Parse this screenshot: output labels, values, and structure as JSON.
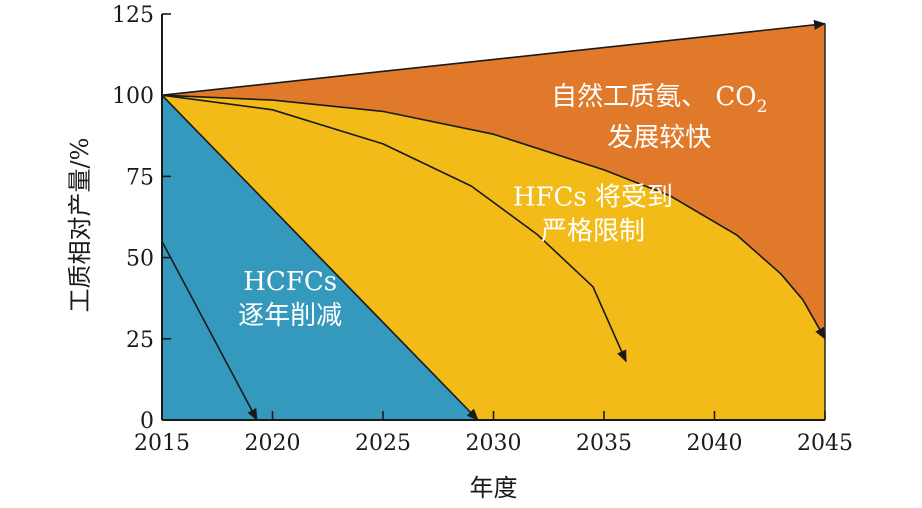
{
  "chart_data": {
    "type": "area",
    "xlabel": "年度",
    "ylabel": "工质相对产量/%",
    "xlim": [
      2015,
      2045
    ],
    "ylim": [
      0,
      125
    ],
    "x_ticks": [
      2015,
      2020,
      2025,
      2030,
      2035,
      2040,
      2045
    ],
    "y_ticks": [
      0,
      25,
      50,
      75,
      100,
      125
    ],
    "grid": false,
    "colors": {
      "natural": "#e07a2a",
      "hfc": "#f2bb18",
      "hcfc": "#3598bd"
    },
    "regions": [
      {
        "key": "natural",
        "boundary": [
          [
            2015,
            100
          ],
          [
            2045,
            122
          ]
        ]
      },
      {
        "key": "hfc",
        "boundary": [
          [
            2015,
            100
          ],
          [
            2020,
            98.5
          ],
          [
            2025,
            95
          ],
          [
            2030,
            88
          ],
          [
            2035,
            77
          ],
          [
            2038,
            69
          ],
          [
            2041,
            57
          ],
          [
            2043,
            45
          ],
          [
            2044,
            37
          ],
          [
            2045,
            25
          ]
        ]
      },
      {
        "key": "hcfc",
        "boundary": [
          [
            2015,
            100
          ],
          [
            2029.3,
            0
          ]
        ]
      }
    ],
    "arrows": [
      {
        "points": [
          [
            2015,
            55
          ],
          [
            2019.3,
            0
          ]
        ]
      },
      {
        "points": [
          [
            2015,
            100
          ],
          [
            2029.3,
            0
          ]
        ]
      },
      {
        "points": [
          [
            2015,
            100
          ],
          [
            2020,
            95.5
          ],
          [
            2025,
            85
          ],
          [
            2029,
            72
          ],
          [
            2032,
            57
          ],
          [
            2034.5,
            41
          ],
          [
            2036,
            18
          ]
        ]
      },
      {
        "points": [
          [
            2015,
            100
          ],
          [
            2020,
            98.5
          ],
          [
            2025,
            95
          ],
          [
            2030,
            88
          ],
          [
            2035,
            77
          ],
          [
            2038,
            69
          ],
          [
            2041,
            57
          ],
          [
            2043,
            45
          ],
          [
            2044,
            37
          ],
          [
            2045,
            25
          ]
        ]
      },
      {
        "points": [
          [
            2015,
            100
          ],
          [
            2045,
            122
          ]
        ]
      }
    ],
    "annotations": [
      {
        "lines": [
          "自然工质氨、 CO",
          "发展较快"
        ],
        "subscript": "2",
        "x": 2037.5,
        "y": 97
      },
      {
        "lines": [
          "HFCs 将受到",
          "严格限制"
        ],
        "x": 2034.5,
        "y": 66
      },
      {
        "lines": [
          "HCFCs",
          "逐年削减"
        ],
        "x": 2020.8,
        "y": 40
      }
    ]
  }
}
